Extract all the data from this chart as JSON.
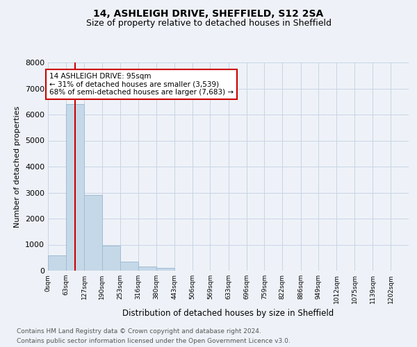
{
  "title1": "14, ASHLEIGH DRIVE, SHEFFIELD, S12 2SA",
  "title2": "Size of property relative to detached houses in Sheffield",
  "xlabel": "Distribution of detached houses by size in Sheffield",
  "ylabel": "Number of detached properties",
  "bar_values": [
    580,
    6400,
    2900,
    970,
    350,
    160,
    95,
    0,
    0,
    0,
    0,
    0,
    0,
    0,
    0,
    0,
    0,
    0,
    0,
    0
  ],
  "bin_edges": [
    0,
    63,
    127,
    190,
    253,
    316,
    380,
    443,
    506,
    569,
    633,
    696,
    759,
    822,
    886,
    949,
    1012,
    1075,
    1139,
    1202,
    1265
  ],
  "bar_color": "#c5d8e8",
  "bar_edge_color": "#a0bcd4",
  "grid_color": "#c8d4e4",
  "property_size": 95,
  "vline_color": "#cc0000",
  "annotation_text": "14 ASHLEIGH DRIVE: 95sqm\n← 31% of detached houses are smaller (3,539)\n68% of semi-detached houses are larger (7,683) →",
  "annotation_box_color": "#cc0000",
  "ylim": [
    0,
    8000
  ],
  "yticks": [
    0,
    1000,
    2000,
    3000,
    4000,
    5000,
    6000,
    7000,
    8000
  ],
  "footer_line1": "Contains HM Land Registry data © Crown copyright and database right 2024.",
  "footer_line2": "Contains public sector information licensed under the Open Government Licence v3.0.",
  "bg_color": "#eef2f8",
  "axes_bg_color": "#eef2f8"
}
